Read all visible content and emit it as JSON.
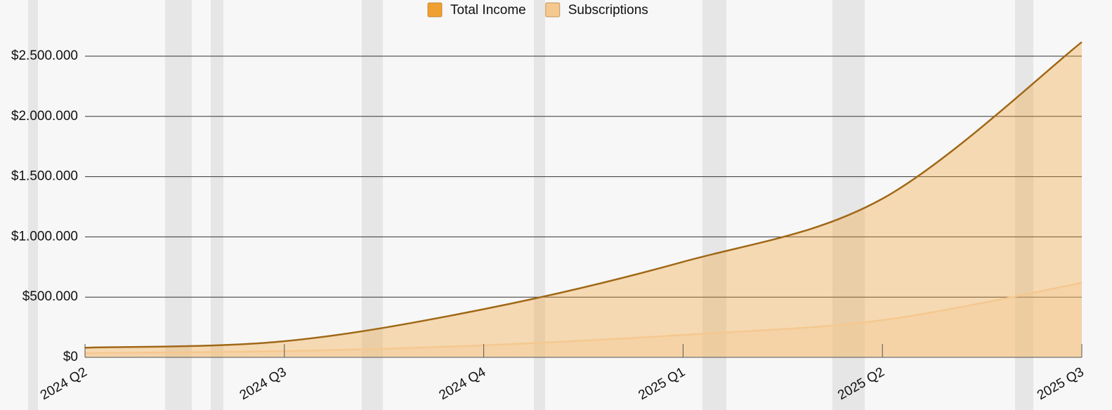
{
  "chart_data": {
    "type": "area",
    "categories": [
      "2024 Q2",
      "2024 Q3",
      "2024 Q4",
      "2025 Q1",
      "2025 Q2",
      "2025 Q3"
    ],
    "series": [
      {
        "name": "Total Income",
        "color": "#f0a030",
        "values": [
          80000,
          134000,
          400000,
          793000,
          1317000,
          2617000
        ]
      },
      {
        "name": "Subscriptions",
        "color": "#f5c890",
        "values": [
          35000,
          52000,
          100000,
          186000,
          309000,
          618000
        ]
      }
    ],
    "ylim": [
      0,
      2630000
    ],
    "yticks": [
      {
        "value": 0,
        "label": "$0"
      },
      {
        "value": 500000,
        "label": "$500.000"
      },
      {
        "value": 1000000,
        "label": "$1.000.000"
      },
      {
        "value": 1500000,
        "label": "$1.500.000"
      },
      {
        "value": 2000000,
        "label": "$2.000.000"
      },
      {
        "value": 2500000,
        "label": "$2.500.000"
      }
    ],
    "grid": true
  }
}
